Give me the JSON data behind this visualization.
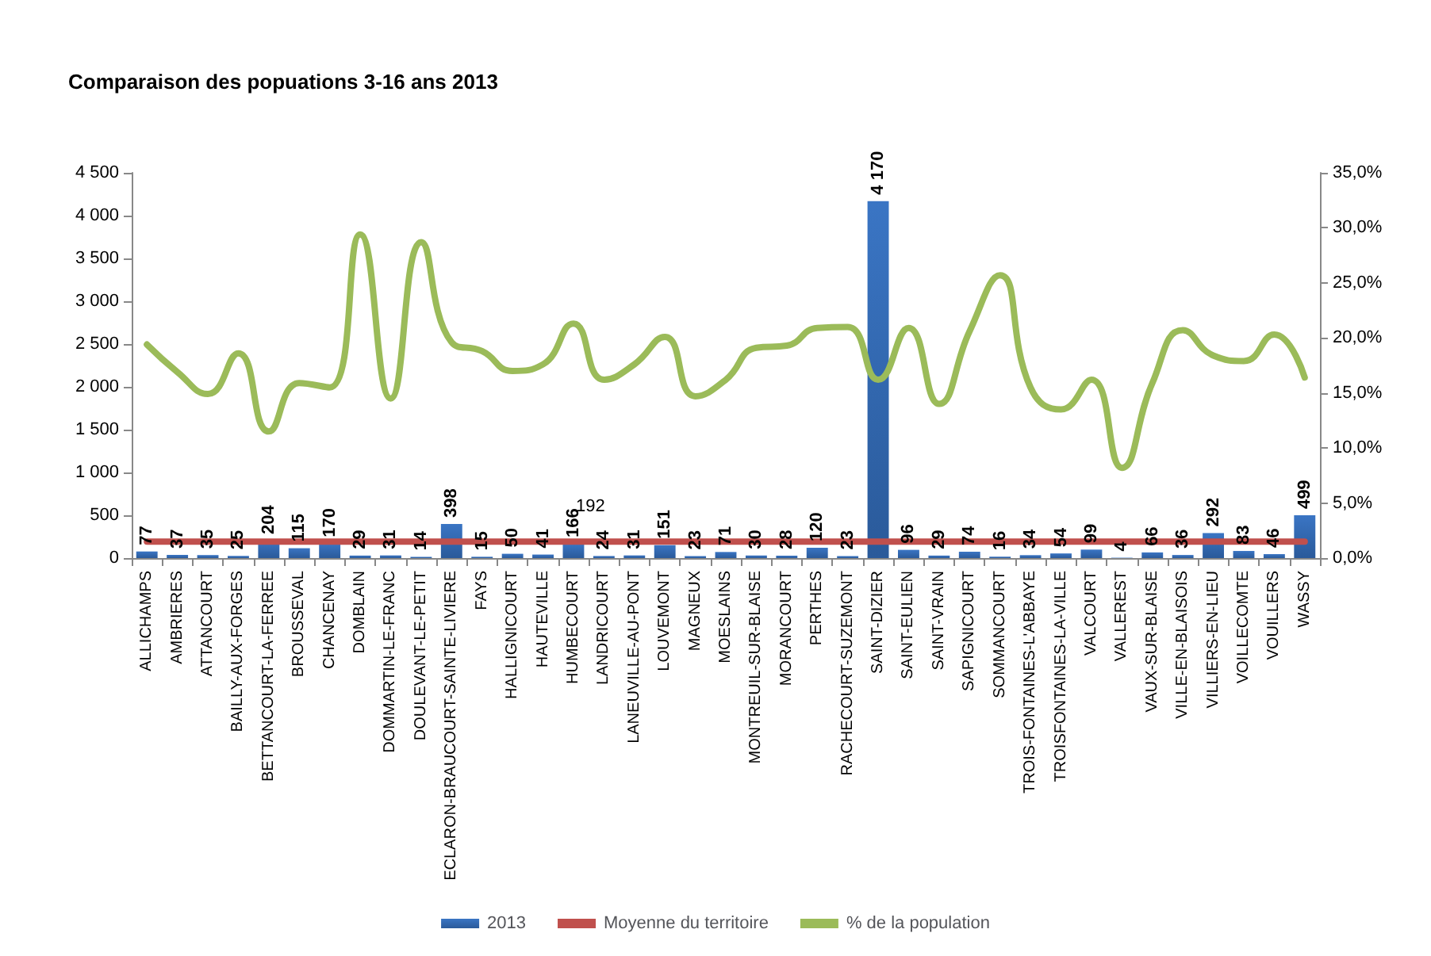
{
  "chart_data": {
    "type": "bar",
    "title": "Comparaison des popuations 3-16 ans 2013",
    "categories": [
      "ALLICHAMPS",
      "AMBRIERES",
      "ATTANCOURT",
      "BAILLY-AUX-FORGES",
      "BETTANCOURT-LA-FERREE",
      "BROUSSEVAL",
      "CHANCENAY",
      "DOMBLAIN",
      "DOMMARTIN-LE-FRANC",
      "DOULEVANT-LE-PETIT",
      "ECLARON-BRAUCOURT-SAINTE-LIVIERE",
      "FAYS",
      "HALLIGNICOURT",
      "HAUTEVILLE",
      "HUMBECOURT",
      "LANDRICOURT",
      "LANEUVILLE-AU-PONT",
      "LOUVEMONT",
      "MAGNEUX",
      "MOESLAINS",
      "MONTREUIL-SUR-BLAISE",
      "MORANCOURT",
      "PERTHES",
      "RACHECOURT-SUZEMONT",
      "SAINT-DIZIER",
      "SAINT-EULIEN",
      "SAINT-VRAIN",
      "SAPIGNICOURT",
      "SOMMANCOURT",
      "TROIS-FONTAINES-L'ABBAYE",
      "TROISFONTAINES-LA-VILLE",
      "VALCOURT",
      "VALLEREST",
      "VAUX-SUR-BLAISE",
      "VILLE-EN-BLAISOIS",
      "VILLIERS-EN-LIEU",
      "VOILLECOMTE",
      "VOUILLERS",
      "WASSY"
    ],
    "series": [
      {
        "name": "2013",
        "color": "#3a75c4",
        "values": [
          77,
          37,
          35,
          25,
          204,
          115,
          170,
          29,
          31,
          14,
          398,
          15,
          50,
          41,
          166,
          24,
          31,
          151,
          23,
          71,
          30,
          28,
          120,
          23,
          4170,
          96,
          29,
          74,
          16,
          34,
          54,
          99,
          4,
          66,
          36,
          292,
          83,
          46,
          499
        ],
        "value_labels": [
          "77",
          "37",
          "35",
          "25",
          "204",
          "115",
          "170",
          "29",
          "31",
          "14",
          "398",
          "15",
          "50",
          "41",
          "166",
          "24",
          "31",
          "151",
          "23",
          "71",
          "30",
          "28",
          "120",
          "23",
          "4 170",
          "96",
          "29",
          "74",
          "16",
          "34",
          "54",
          "99",
          "4",
          "66",
          "36",
          "292",
          "83",
          "46",
          "499"
        ]
      },
      {
        "name": "Moyenne du territoire",
        "type": "line",
        "axis": "y2",
        "color": "#c0504d",
        "values": [
          1.5,
          1.5,
          1.5,
          1.5,
          1.5,
          1.5,
          1.5,
          1.5,
          1.5,
          1.5,
          1.5,
          1.5,
          1.5,
          1.5,
          1.5,
          1.5,
          1.5,
          1.5,
          1.5,
          1.5,
          1.5,
          1.5,
          1.5,
          1.5,
          1.5,
          1.5,
          1.5,
          1.5,
          1.5,
          1.5,
          1.5,
          1.5,
          1.5,
          1.5,
          1.5,
          1.5,
          1.5,
          1.5,
          1.5
        ]
      },
      {
        "name": "% de la population",
        "type": "line",
        "axis": "y2",
        "color": "#9bbb59",
        "values": [
          19.4,
          16.9,
          14.9,
          18.6,
          11.5,
          15.9,
          15.5,
          29.4,
          14.5,
          28.7,
          19.6,
          18.8,
          17.0,
          17.6,
          21.3,
          16.2,
          17.6,
          20.1,
          14.7,
          16.2,
          19.1,
          19.3,
          20.9,
          21.0,
          16.2,
          20.9,
          14.0,
          20.6,
          25.7,
          15.5,
          13.5,
          16.2,
          8.2,
          15.9,
          20.7,
          18.4,
          17.9,
          20.3,
          16.4
        ]
      }
    ],
    "ylim": [
      0,
      4500
    ],
    "yticks": [
      0,
      500,
      {
        "value": 1000,
        "label": "1 000"
      },
      {
        "value": 1500,
        "label": "1 500"
      },
      {
        "value": 2000,
        "label": "2 000"
      },
      {
        "value": 2500,
        "label": "2 500"
      },
      {
        "value": 3000,
        "label": "3 000"
      },
      {
        "value": 3500,
        "label": "3 500"
      },
      {
        "value": 4000,
        "label": "4 000"
      },
      {
        "value": 4500,
        "label": "4 500"
      }
    ],
    "y2lim": [
      0,
      35
    ],
    "y2ticks": [
      {
        "value": 0,
        "label": "0,0%"
      },
      {
        "value": 5,
        "label": "5,0%"
      },
      {
        "value": 10,
        "label": "10,0%"
      },
      {
        "value": 15,
        "label": "15,0%"
      },
      {
        "value": 20,
        "label": "20,0%"
      },
      {
        "value": 25,
        "label": "25,0%"
      },
      {
        "value": 30,
        "label": "30,0%"
      },
      {
        "value": 35,
        "label": "35,0%"
      }
    ],
    "annotations": [
      "192"
    ],
    "legend": "bottom",
    "grid": false,
    "marker": "none"
  }
}
